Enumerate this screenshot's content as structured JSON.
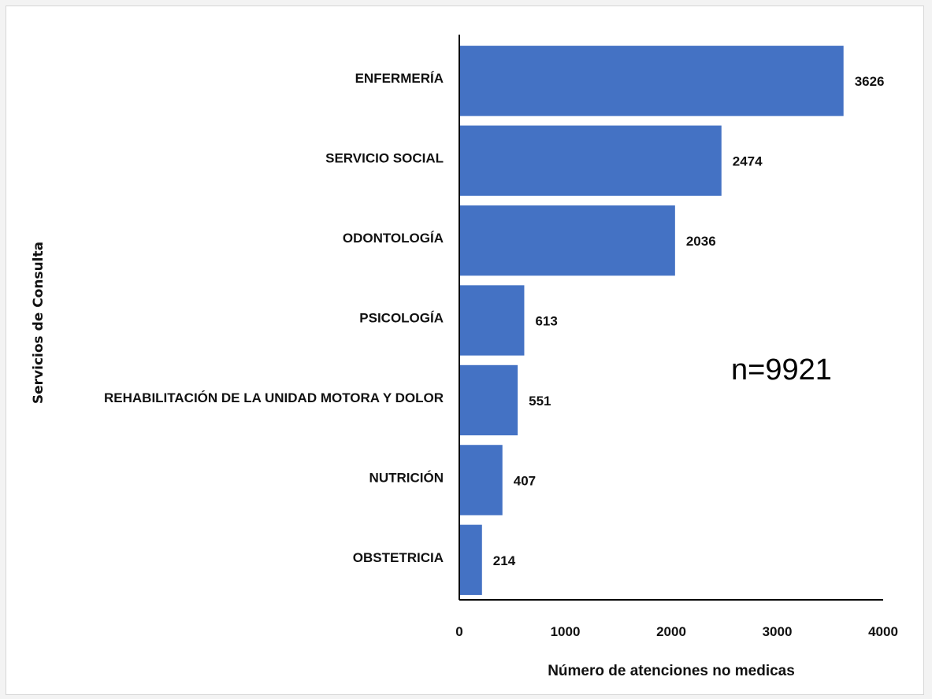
{
  "chart_data": {
    "type": "bar",
    "orientation": "horizontal",
    "categories": [
      "ENFERMERÍA",
      "SERVICIO SOCIAL",
      "ODONTOLOGÍA",
      "PSICOLOGÍA",
      "REHABILITACIÓN DE LA UNIDAD MOTORA Y DOLOR",
      "NUTRICIÓN",
      "OBSTETRICIA"
    ],
    "values": [
      3626,
      2474,
      2036,
      613,
      551,
      407,
      214
    ],
    "value_labels": [
      "3626",
      "2474",
      "2036",
      "613",
      "551",
      "407",
      "214"
    ],
    "xlabel": "Número de atenciones no medicas",
    "ylabel": "Servicios de Consulta",
    "xlim": [
      0,
      4000
    ],
    "xticks": [
      "0",
      "1000",
      "2000",
      "3000",
      "4000"
    ],
    "annotation": "n=9921",
    "grid": false,
    "bar_color": "#4472C4"
  }
}
